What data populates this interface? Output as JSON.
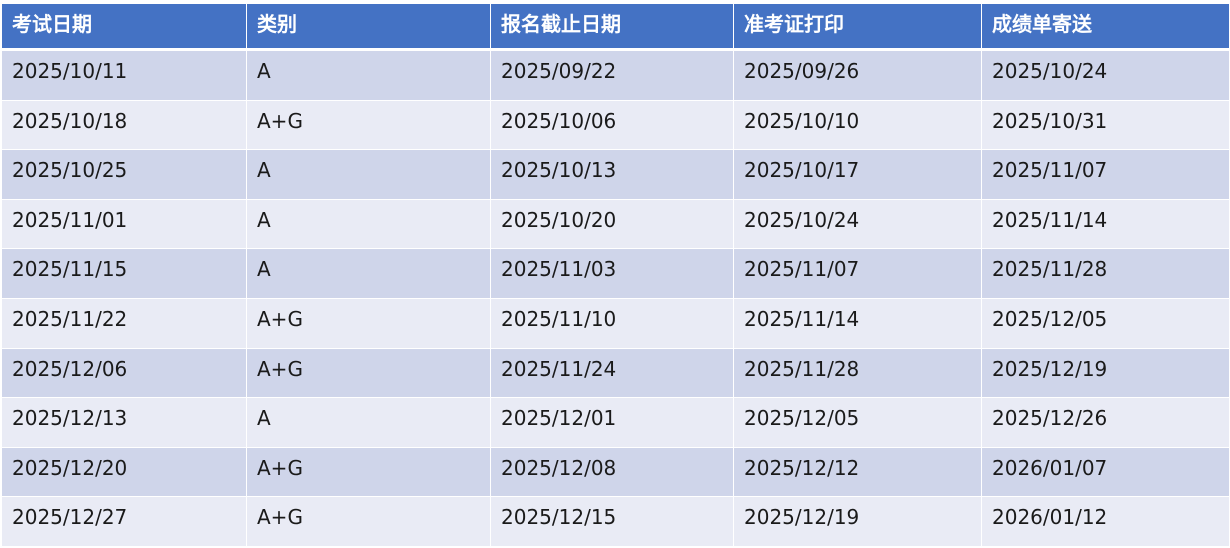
{
  "colors": {
    "header": "#4472C4",
    "row_odd": "#CFD5EA",
    "row_even": "#E9EBF5"
  },
  "table": {
    "headers": [
      "考试日期",
      "类别",
      "报名截止日期",
      "准考证打印",
      "成绩单寄送"
    ],
    "rows": [
      [
        "2025/10/11",
        "A",
        "2025/09/22",
        "2025/09/26",
        "2025/10/24"
      ],
      [
        "2025/10/18",
        "A+G",
        "2025/10/06",
        "2025/10/10",
        "2025/10/31"
      ],
      [
        "2025/10/25",
        "A",
        "2025/10/13",
        "2025/10/17",
        "2025/11/07"
      ],
      [
        "2025/11/01",
        "A",
        "2025/10/20",
        "2025/10/24",
        "2025/11/14"
      ],
      [
        "2025/11/15",
        "A",
        "2025/11/03",
        "2025/11/07",
        "2025/11/28"
      ],
      [
        "2025/11/22",
        "A+G",
        "2025/11/10",
        "2025/11/14",
        "2025/12/05"
      ],
      [
        "2025/12/06",
        "A+G",
        "2025/11/24",
        "2025/11/28",
        "2025/12/19"
      ],
      [
        "2025/12/13",
        "A",
        "2025/12/01",
        "2025/12/05",
        "2025/12/26"
      ],
      [
        "2025/12/20",
        "A+G",
        "2025/12/08",
        "2025/12/12",
        "2026/01/07"
      ],
      [
        "2025/12/27",
        "A+G",
        "2025/12/15",
        "2025/12/19",
        "2026/01/12"
      ]
    ]
  }
}
